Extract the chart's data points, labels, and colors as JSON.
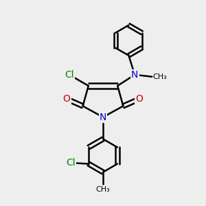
{
  "background_color": "#eeeeee",
  "line_color": "black",
  "bond_width": 1.8,
  "atom_colors": {
    "N": "#0000cc",
    "O": "#cc0000",
    "Cl": "#008800"
  },
  "font_size": 10,
  "small_font_size": 9
}
